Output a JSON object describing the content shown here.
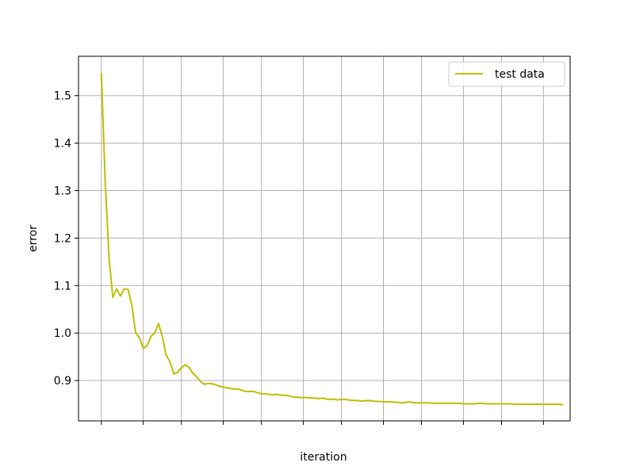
{
  "chart_data": {
    "type": "line",
    "title": "",
    "xlabel": "iteration",
    "ylabel": "error",
    "xlim": [
      -6,
      123
    ],
    "ylim": [
      0.815,
      1.583
    ],
    "x_ticks_labeled": false,
    "x_ticks": [
      0,
      11,
      21,
      32,
      42,
      53,
      63,
      74,
      84,
      95,
      105,
      116
    ],
    "y_ticks": [
      0.9,
      1.0,
      1.1,
      1.2,
      1.3,
      1.4,
      1.5
    ],
    "y_tick_labels": [
      "0.9",
      "1.0",
      "1.1",
      "1.2",
      "1.3",
      "1.4",
      "1.5"
    ],
    "grid": true,
    "legend_position": "top-right",
    "series": [
      {
        "name": "test data",
        "color": "#bfbf00",
        "x": [
          0,
          1,
          2,
          3,
          4,
          5,
          6,
          7,
          8,
          9,
          10,
          11,
          12,
          13,
          14,
          15,
          16,
          17,
          18,
          19,
          20,
          21,
          22,
          23,
          24,
          25,
          26,
          27,
          28,
          29,
          30,
          31,
          32,
          33,
          34,
          35,
          36,
          37,
          38,
          39,
          40,
          41,
          42,
          43,
          44,
          45,
          46,
          47,
          48,
          49,
          50,
          51,
          52,
          53,
          54,
          55,
          56,
          57,
          58,
          59,
          60,
          61,
          62,
          63,
          64,
          65,
          66,
          67,
          68,
          69,
          70,
          71,
          72,
          73,
          74,
          75,
          76,
          77,
          78,
          79,
          80,
          81,
          82,
          83,
          84,
          85,
          86,
          87,
          88,
          89,
          90,
          91,
          92,
          93,
          94,
          95,
          96,
          97,
          98,
          99,
          100,
          101,
          102,
          103,
          104,
          105,
          106,
          107,
          108,
          109,
          110,
          111,
          112,
          113,
          114,
          115,
          116,
          117,
          118,
          119,
          120,
          121
        ],
        "y": [
          1.547,
          1.32,
          1.16,
          1.075,
          1.093,
          1.078,
          1.093,
          1.092,
          1.058,
          1.0,
          0.99,
          0.968,
          0.973,
          0.993,
          1.0,
          1.02,
          0.993,
          0.953,
          0.94,
          0.914,
          0.917,
          0.927,
          0.933,
          0.928,
          0.915,
          0.908,
          0.898,
          0.892,
          0.894,
          0.893,
          0.891,
          0.888,
          0.886,
          0.885,
          0.883,
          0.882,
          0.882,
          0.879,
          0.877,
          0.877,
          0.877,
          0.874,
          0.872,
          0.872,
          0.871,
          0.87,
          0.871,
          0.869,
          0.869,
          0.868,
          0.866,
          0.865,
          0.864,
          0.864,
          0.864,
          0.863,
          0.863,
          0.862,
          0.863,
          0.861,
          0.86,
          0.861,
          0.859,
          0.86,
          0.86,
          0.859,
          0.858,
          0.858,
          0.857,
          0.857,
          0.858,
          0.857,
          0.856,
          0.856,
          0.855,
          0.855,
          0.855,
          0.854,
          0.854,
          0.853,
          0.854,
          0.855,
          0.853,
          0.853,
          0.853,
          0.853,
          0.853,
          0.852,
          0.852,
          0.852,
          0.852,
          0.852,
          0.852,
          0.852,
          0.852,
          0.851,
          0.851,
          0.851,
          0.851,
          0.852,
          0.852,
          0.851,
          0.851,
          0.851,
          0.851,
          0.851,
          0.851,
          0.851,
          0.85,
          0.85,
          0.85,
          0.85,
          0.85,
          0.85,
          0.85,
          0.85,
          0.85,
          0.85,
          0.85,
          0.85,
          0.85,
          0.849
        ]
      }
    ]
  }
}
